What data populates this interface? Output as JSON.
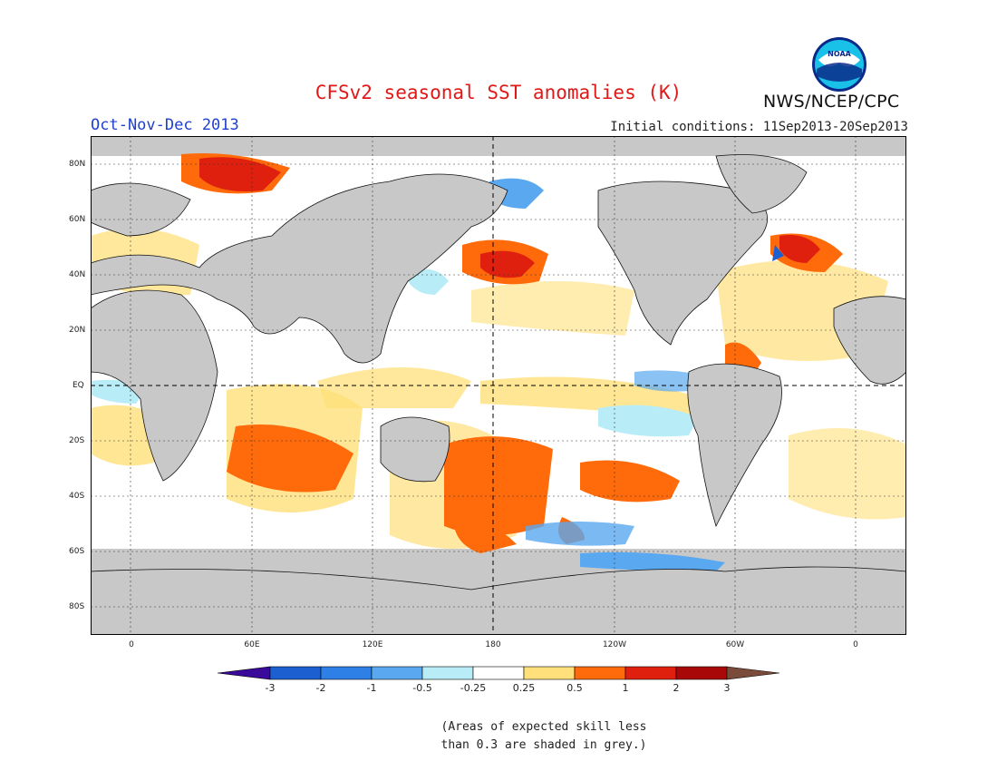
{
  "title": "CFSv2 seasonal SST anomalies (K)",
  "season": "Oct-Nov-Dec 2013",
  "initial_conditions": "Initial conditions: 11Sep2013-20Sep2013",
  "agency": "NWS/NCEP/CPC",
  "logo_text": "NOAA",
  "lat_labels": [
    "80N",
    "60N",
    "40N",
    "20N",
    "EQ",
    "20S",
    "40S",
    "60S",
    "80S"
  ],
  "lon_labels": [
    "0",
    "60E",
    "120E",
    "180",
    "120W",
    "60W",
    "0"
  ],
  "colorbar": {
    "ticks": [
      "-3",
      "-2",
      "-1",
      "-0.5",
      "-0.25",
      "0.25",
      "0.5",
      "1",
      "2",
      "3"
    ],
    "colors": [
      "#3a0a9a",
      "#1c5fd0",
      "#2e7fe6",
      "#5aa8f0",
      "#b8ecf6",
      "#ffffff",
      "#ffe07a",
      "#ff6a0a",
      "#e0200e",
      "#a80808",
      "#7a4a3a"
    ]
  },
  "map": {
    "land_color": "#c8c8c8",
    "low_skill_color": "#c8c8c8",
    "ocean_color": "#ffffff"
  },
  "note": [
    "(Areas of expected skill less",
    "than 0.3 are shaded in grey.)"
  ]
}
